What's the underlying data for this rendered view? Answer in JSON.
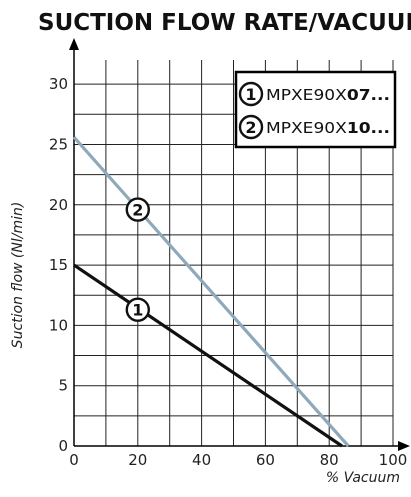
{
  "chart_data": {
    "type": "line",
    "title": "SUCTION FLOW RATE/VACUUM",
    "xlabel": "% Vacuum",
    "ylabel": "Suction flow (Nl/min)",
    "xlim": [
      0,
      100
    ],
    "ylim": [
      0,
      32
    ],
    "x_ticks": [
      0,
      20,
      40,
      60,
      80,
      100
    ],
    "y_ticks": [
      0,
      5,
      10,
      15,
      20,
      25,
      30
    ],
    "grid": true,
    "legend_placement": "top-right",
    "series": [
      {
        "name": "MPXE90X07...",
        "prefix": "MPXE90X",
        "suffix": "07...",
        "marker": "1",
        "color": "#111111",
        "x": [
          0,
          84
        ],
        "y": [
          15,
          0
        ],
        "marker_at": [
          20,
          11.3
        ]
      },
      {
        "name": "MPXE90X10...",
        "prefix": "MPXE90X",
        "suffix": "10...",
        "marker": "2",
        "color": "#8fa9bb",
        "x": [
          0,
          86
        ],
        "y": [
          25.6,
          0
        ],
        "marker_at": [
          20,
          19.6
        ]
      }
    ]
  }
}
